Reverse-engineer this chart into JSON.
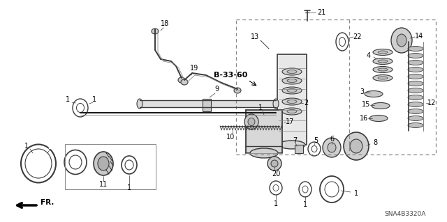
{
  "background_color": "#ffffff",
  "diagram_code": "SNA4B3320A",
  "bold_label": "B-33-60",
  "gray": "#3a3a3a",
  "lgray": "#888888",
  "dgray": "#1a1a1a"
}
